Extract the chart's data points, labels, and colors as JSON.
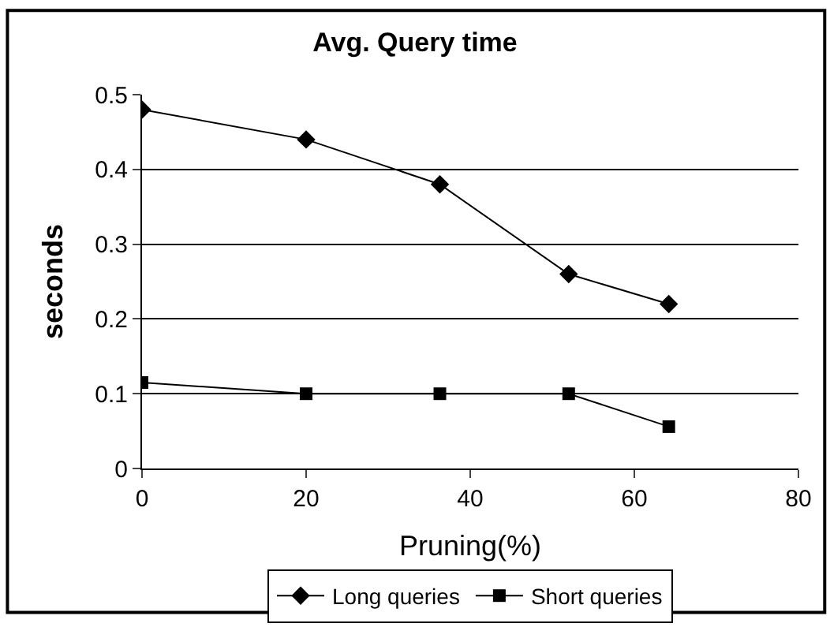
{
  "chart_data": {
    "type": "line",
    "title": "Avg. Query time",
    "xlabel": "Pruning(%)",
    "ylabel": "seconds",
    "x": [
      0,
      20,
      36.3,
      52,
      64.2
    ],
    "series": [
      {
        "name": "Long queries",
        "color": "#000000",
        "marker": "diamond",
        "values": [
          0.48,
          0.44,
          0.38,
          0.26,
          0.22
        ]
      },
      {
        "name": "Short queries",
        "color": "#000000",
        "marker": "square",
        "values": [
          0.115,
          0.1,
          0.1,
          0.1,
          0.056
        ]
      }
    ],
    "xlim": [
      0,
      80
    ],
    "xticks": [
      0,
      20,
      40,
      60,
      80
    ],
    "ylim": [
      0,
      0.5
    ],
    "yticks": [
      0,
      0.1,
      0.2,
      0.3,
      0.4,
      0.5
    ],
    "grid": "y",
    "legend": "bottom",
    "line_style": "solid"
  }
}
